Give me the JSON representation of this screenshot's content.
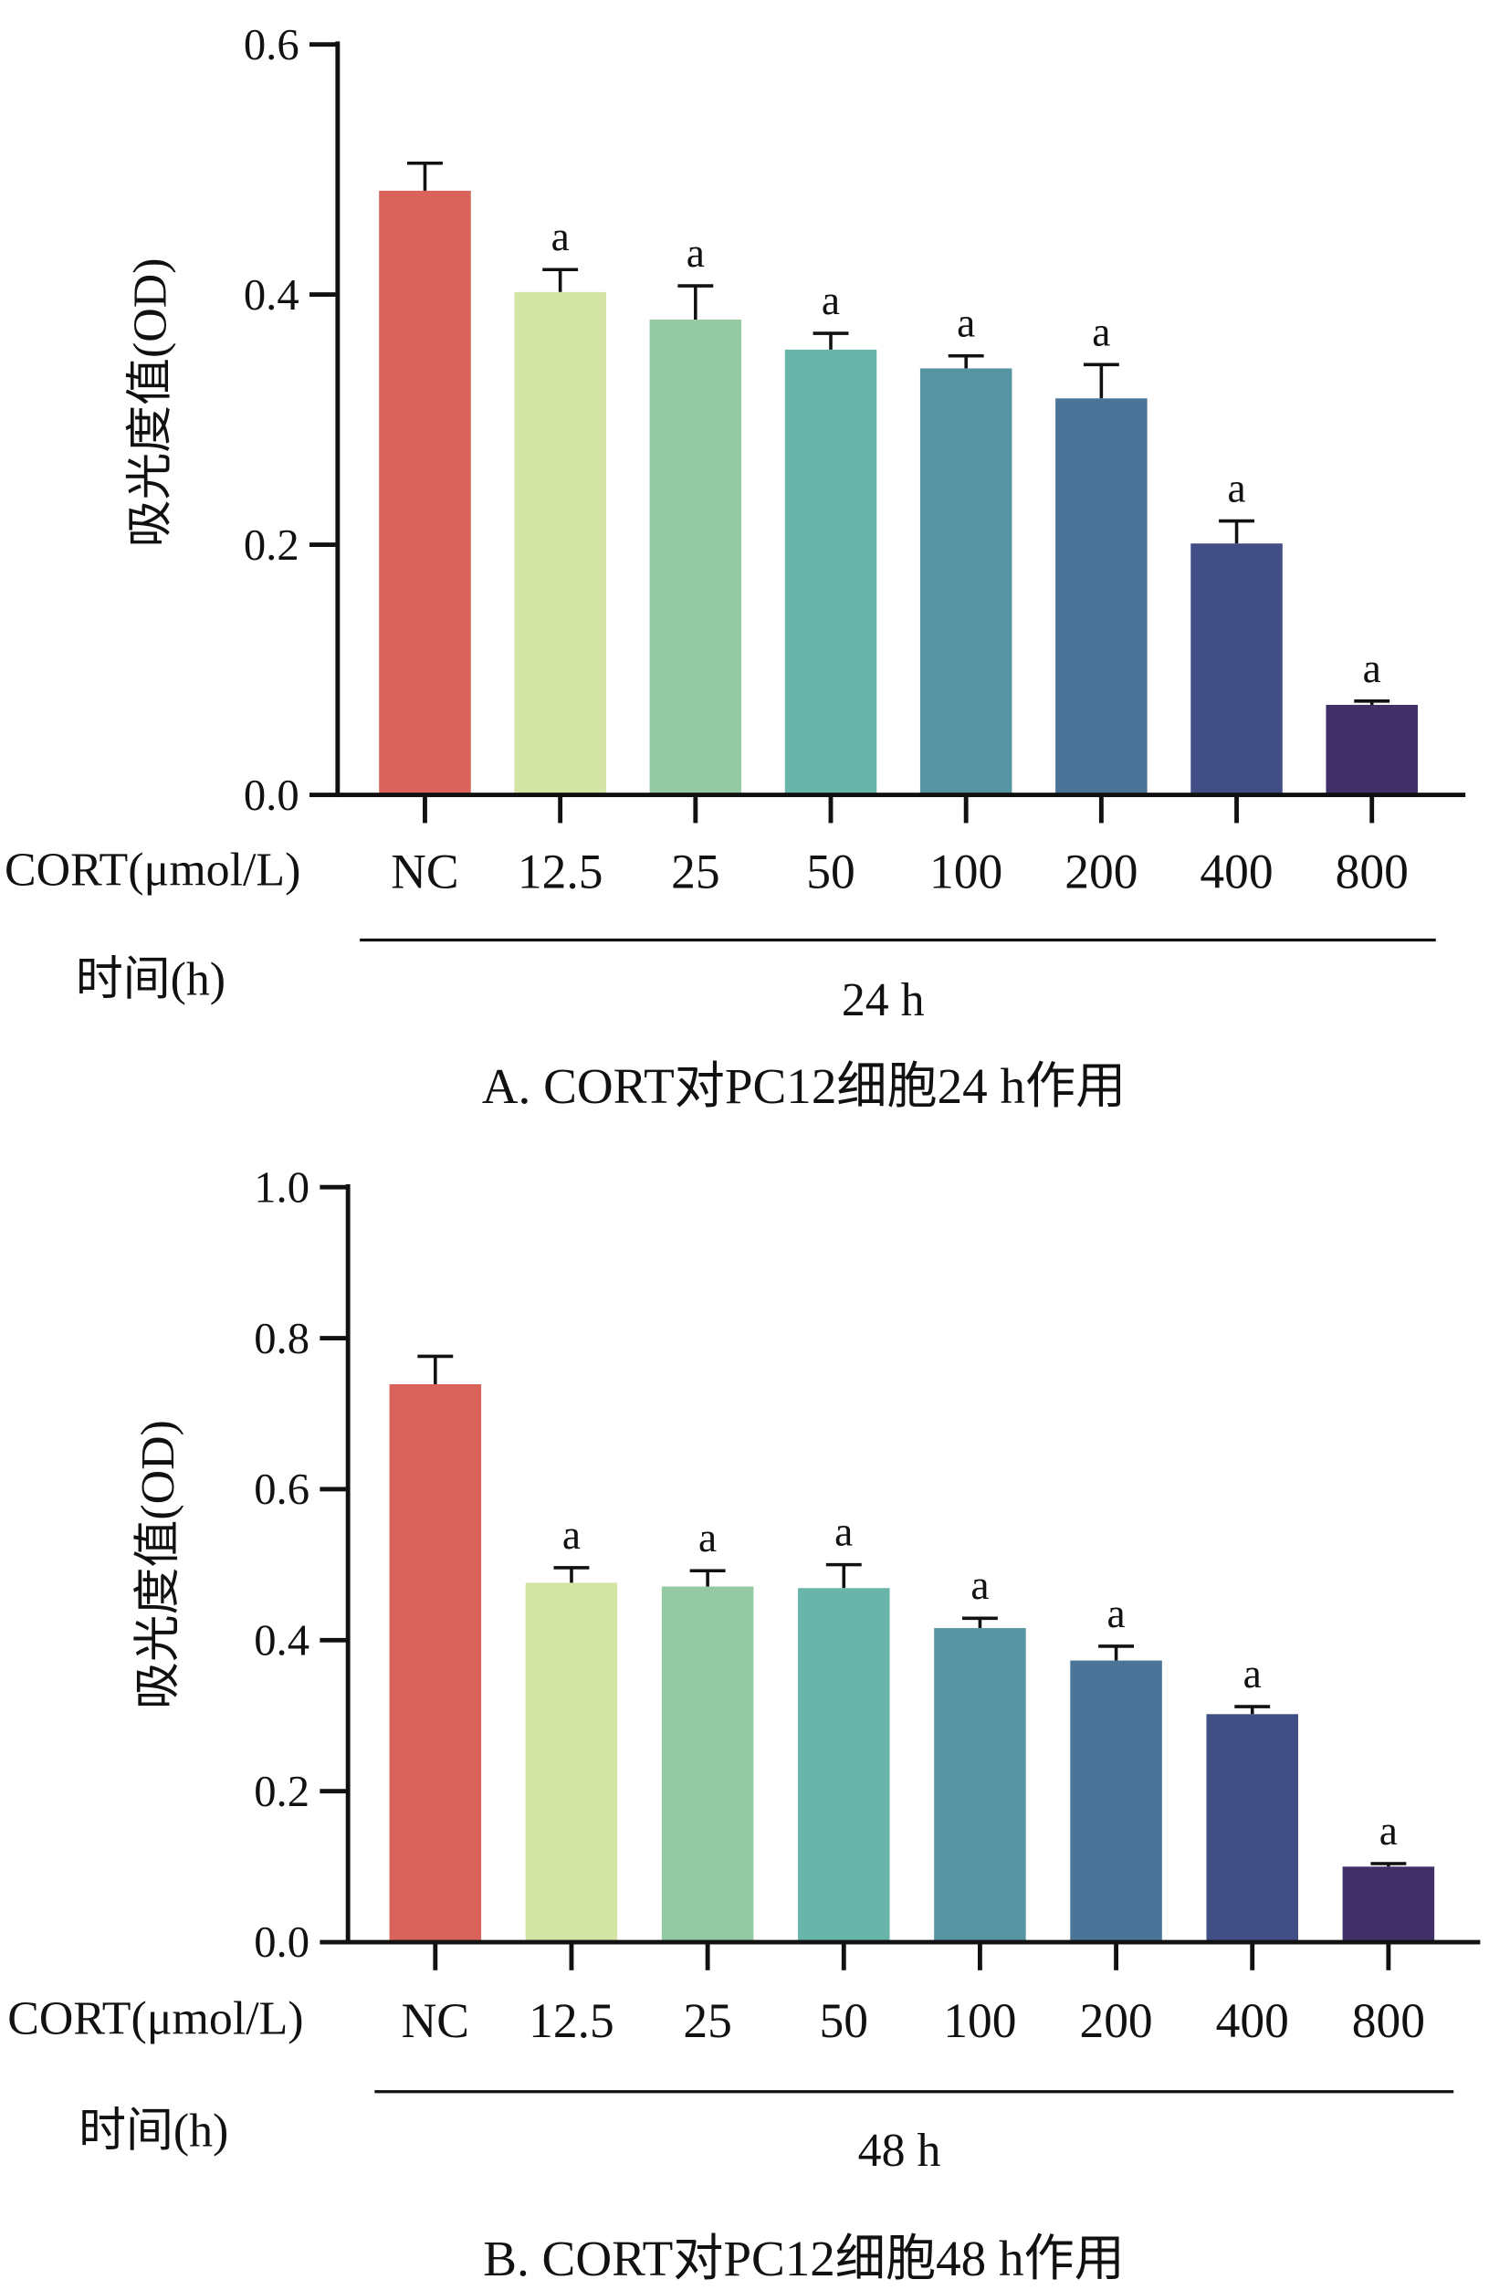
{
  "chart_data": [
    {
      "type": "bar",
      "title": "A. CORT对PC12细胞24 h作用",
      "ylabel": "吸光度值(OD)",
      "xlabel_row": "CORT(μmol/L)",
      "time_row_label": "时间(h)",
      "time_value": "24 h",
      "categories": [
        "NC",
        "12.5",
        "25",
        "50",
        "100",
        "200",
        "400",
        "800"
      ],
      "values": [
        0.483,
        0.402,
        0.38,
        0.356,
        0.341,
        0.317,
        0.201,
        0.072
      ],
      "errors": [
        0.022,
        0.018,
        0.027,
        0.013,
        0.01,
        0.027,
        0.018,
        0.003
      ],
      "significance": [
        "",
        "a",
        "a",
        "a",
        "a",
        "a",
        "a",
        "a"
      ],
      "ylim": [
        0,
        0.6
      ],
      "yticks": [
        "0.0",
        "0.2",
        "0.4",
        "0.6"
      ],
      "colors": [
        "#d9625a",
        "#d4e4a4",
        "#94c9a4",
        "#6ab5aa",
        "#5895a2",
        "#4a7498",
        "#424f86",
        "#3f3068"
      ]
    },
    {
      "type": "bar",
      "title": "B. CORT对PC12细胞48 h作用",
      "ylabel": "吸光度值(OD)",
      "xlabel_row": "CORT(μmol/L)",
      "time_row_label": "时间(h)",
      "time_value": "48 h",
      "categories": [
        "NC",
        "12.5",
        "25",
        "50",
        "100",
        "200",
        "400",
        "800"
      ],
      "values": [
        0.739,
        0.476,
        0.471,
        0.469,
        0.416,
        0.373,
        0.302,
        0.1
      ],
      "errors": [
        0.037,
        0.02,
        0.021,
        0.031,
        0.013,
        0.019,
        0.01,
        0.004
      ],
      "significance": [
        "",
        "a",
        "a",
        "a",
        "a",
        "a",
        "a",
        "a"
      ],
      "ylim": [
        0,
        1.0
      ],
      "yticks": [
        "0.0",
        "0.2",
        "0.4",
        "0.6",
        "0.8",
        "1.0"
      ],
      "colors": [
        "#d9625a",
        "#d4e4a4",
        "#94c9a4",
        "#6ab5aa",
        "#5895a2",
        "#4a7498",
        "#424f86",
        "#3f3068"
      ]
    }
  ]
}
